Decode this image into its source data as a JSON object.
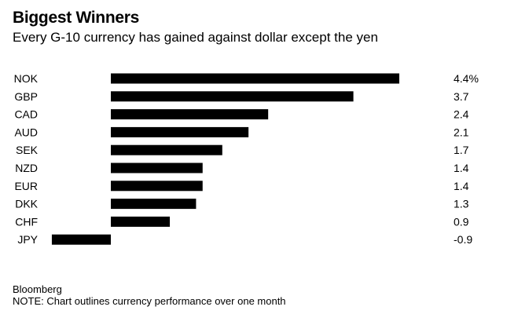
{
  "header": {
    "title": "Biggest Winners",
    "subtitle": "Every G-10 currency has gained against dollar except the yen"
  },
  "footer": {
    "source": "Bloomberg",
    "note": "NOTE: Chart outlines currency performance over one month"
  },
  "colors": {
    "bar": "#000000",
    "text": "#000000",
    "background": "#ffffff"
  },
  "chart_data": {
    "type": "bar",
    "orientation": "horizontal",
    "categories": [
      "NOK",
      "GBP",
      "CAD",
      "AUD",
      "SEK",
      "NZD",
      "EUR",
      "DKK",
      "CHF",
      "JPY"
    ],
    "values": [
      4.4,
      3.7,
      2.4,
      2.1,
      1.7,
      1.4,
      1.4,
      1.3,
      0.9,
      -0.9
    ],
    "value_labels": [
      "4.4%",
      "3.7",
      "2.4",
      "2.1",
      "1.7",
      "1.4",
      "1.4",
      "1.3",
      "0.9",
      "-0.9"
    ],
    "title": "Biggest Winners",
    "subtitle": "Every G-10 currency has gained against dollar except the yen",
    "xlabel": "",
    "ylabel": "",
    "grid": false,
    "legend": "none"
  }
}
